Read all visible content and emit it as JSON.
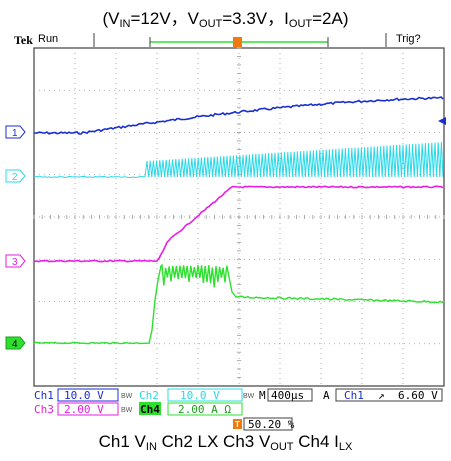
{
  "header": {
    "vin_label": "V",
    "vin_sub": "IN",
    "vin_value": "=12V",
    "vout_label": "V",
    "vout_sub": "OUT",
    "vout_value": "=3.3V",
    "iout_label": "I",
    "iout_sub": "OUT",
    "iout_value": "=2A",
    "sep": "，",
    "open": "(",
    "close": ")"
  },
  "scope": {
    "brand": "Tek",
    "run_state": "Run",
    "trigger_state": "Trig?",
    "trigger_marker": "T",
    "channel_markers": [
      "1",
      "2",
      "3",
      "4"
    ],
    "colors": {
      "ch1": "#1a2fd0",
      "ch2": "#2ad8e8",
      "ch3": "#e61ee6",
      "ch4": "#2ee02e",
      "grid": "#9a9a9a",
      "trigger": "#f07a10",
      "frame": "#404040"
    }
  },
  "readout": {
    "ch1_label": "Ch1",
    "ch1_scale": "10.0 V",
    "ch2_label": "Ch2",
    "ch2_scale": "10.0 V",
    "ch3_label": "Ch3",
    "ch3_scale": "2.00 V",
    "ch4_label": "Ch4",
    "ch4_scale": "2.00 A Ω",
    "bw_mark": "BW",
    "timebase_label": "M",
    "timebase_value": "400µs",
    "acq_mode": "A",
    "trig_source": "Ch1",
    "trig_slope": "↗",
    "trig_level": "6.60 V",
    "trig_position": "50.20 %"
  },
  "footer": {
    "ch1": "Ch1 V",
    "ch1_sub": "IN",
    "ch2": " Ch2 LX Ch3 V",
    "ch3_sub": "OUT",
    "ch4": " Ch4 I",
    "ch4_sub": "LX"
  }
}
